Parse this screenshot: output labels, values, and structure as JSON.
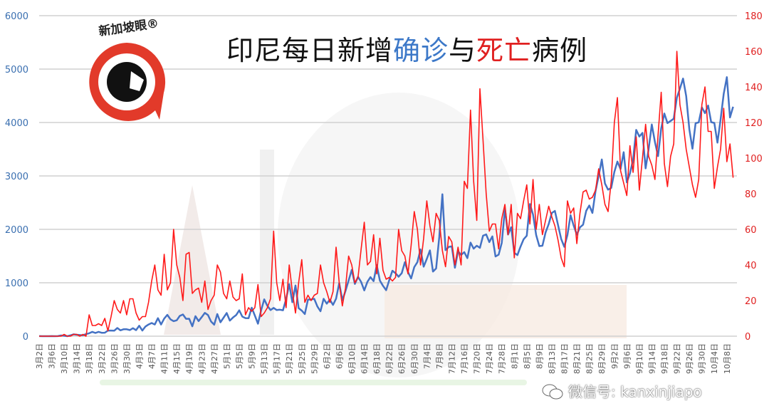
{
  "title": {
    "part1": "印尼每日新增",
    "part2": "确诊",
    "part3": "与",
    "part4": "死亡",
    "part5": "病例"
  },
  "logo": {
    "text": "新加坡眼®"
  },
  "watermark": {
    "text": "微信号: kanxinjiapo",
    "icon": "wechat-icon"
  },
  "colors": {
    "cases": "#4472c4",
    "deaths": "#ff1a1a",
    "left_axis": "#3a6fb0",
    "right_axis": "#e02020",
    "grid": "#d0d0d0"
  },
  "chart_data": {
    "type": "line",
    "title": "印尼每日新增确诊与死亡病例",
    "x_range": [
      "3月2日",
      "10月10日"
    ],
    "x_ticks": [
      "3月2日",
      "3月6日",
      "3月10日",
      "3月14日",
      "3月18日",
      "3月22日",
      "3月26日",
      "3月30日",
      "4月3日",
      "4月7日",
      "4月11日",
      "4月15日",
      "4月19日",
      "4月23日",
      "4月27日",
      "5月1日",
      "5月5日",
      "5月9日",
      "5月13日",
      "5月17日",
      "5月21日",
      "5月25日",
      "5月29日",
      "6月2日",
      "6月6日",
      "6月10日",
      "6月14日",
      "6月18日",
      "6月22日",
      "6月26日",
      "6月30日",
      "7月4日",
      "7月8日",
      "7月12日",
      "7月16日",
      "7月20日",
      "7月24日",
      "7月28日",
      "8月1日",
      "8月5日",
      "8月9日",
      "8月13日",
      "8月17日",
      "8月21日",
      "8月25日",
      "8月29日",
      "9月2日",
      "9月6日",
      "9月10日",
      "9月14日",
      "9月18日",
      "9月22日",
      "9月26日",
      "9月30日",
      "10月4日",
      "10月8日"
    ],
    "y_left": {
      "range": [
        0,
        6000
      ],
      "ticks": [
        "0",
        "1000",
        "2000",
        "3000",
        "4000",
        "5000",
        "6000"
      ]
    },
    "y_right": {
      "range": [
        0,
        180
      ],
      "ticks": [
        "0",
        "20",
        "40",
        "60",
        "80",
        "100",
        "120",
        "140",
        "160",
        "180"
      ]
    },
    "grid": true,
    "series": [
      {
        "axis": "left",
        "color": "#4472c4",
        "values": [
          2,
          0,
          0,
          0,
          2,
          0,
          2,
          13,
          8,
          0,
          15,
          35,
          27,
          21,
          17,
          38,
          55,
          82,
          60,
          81,
          64,
          65,
          106,
          105,
          103,
          153,
          109,
          130,
          129,
          114,
          149,
          113,
          196,
          106,
          181,
          218,
          247,
          218,
          337,
          219,
          330,
          399,
          316,
          282,
          297,
          380,
          407,
          325,
          327,
          185,
          375,
          283,
          357,
          436,
          396,
          275,
          214,
          415,
          260,
          347,
          433,
          292,
          349,
          395,
          484,
          367,
          338,
          336,
          533,
          387,
          233,
          484,
          689,
          568,
          490,
          529,
          489,
          496,
          486,
          693,
          973,
          634,
          949,
          526,
          479,
          415,
          686,
          687,
          700,
          557,
          467,
          700,
          609,
          684,
          585,
          703,
          993,
          672,
          847,
          1043,
          1241,
          979,
          1111,
          1014,
          857,
          1017,
          1106,
          1031,
          1331,
          1041,
          943,
          862,
          1051,
          1226,
          1178,
          1113,
          1178,
          1385,
          1198,
          1082,
          1293,
          1385,
          1624,
          1301,
          1447,
          1607,
          1209,
          1268,
          1853,
          2657,
          1611,
          1671,
          1681,
          1282,
          1591,
          1522,
          1574,
          1462,
          1752,
          1639,
          1693,
          1655,
          1882,
          1906,
          1761,
          1868,
          1492,
          1525,
          1748,
          2381,
          1904,
          2040,
          1560,
          1519,
          1679,
          1815,
          1882,
          2473,
          2277,
          1893,
          1687,
          1693,
          1942,
          2098,
          2307,
          2345,
          2081,
          1821,
          1673,
          1893,
          2266,
          2069,
          1902,
          2037,
          2088,
          2346,
          2447,
          2306,
          2719,
          3003,
          3308,
          2858,
          2743,
          2775,
          3075,
          3269,
          3128,
          3444,
          2880,
          3046,
          3307,
          3861,
          3737,
          3806,
          3141,
          3507,
          3963,
          3635,
          3371,
          3891,
          4168,
          3989,
          4029,
          4071,
          4465,
          4634,
          4823,
          4494,
          3874,
          3509,
          3987,
          4002,
          4284,
          4174,
          4317,
          4007,
          3992,
          3622,
          4056,
          4538,
          4850,
          4094,
          4294
        ]
      },
      {
        "axis": "right",
        "color": "#ff1a1a",
        "values": [
          0,
          0,
          0,
          0,
          0,
          0,
          0,
          0,
          1,
          0,
          0,
          1,
          1,
          0,
          1,
          0,
          12,
          6,
          6,
          7,
          6,
          10,
          3,
          11,
          20,
          15,
          13,
          20,
          12,
          21,
          21,
          13,
          9,
          11,
          11,
          19,
          31,
          40,
          26,
          23,
          46,
          26,
          30,
          60,
          40,
          33,
          20,
          46,
          47,
          24,
          26,
          27,
          19,
          31,
          15,
          20,
          23,
          40,
          36,
          24,
          21,
          31,
          22,
          20,
          21,
          35,
          12,
          16,
          14,
          16,
          29,
          11,
          13,
          16,
          21,
          59,
          30,
          20,
          32,
          16,
          40,
          25,
          13,
          30,
          43,
          19,
          23,
          20,
          23,
          24,
          40,
          30,
          25,
          19,
          25,
          50,
          30,
          17,
          27,
          45,
          40,
          30,
          33,
          49,
          64,
          40,
          42,
          57,
          35,
          55,
          37,
          32,
          33,
          31,
          33,
          60,
          48,
          45,
          35,
          51,
          70,
          60,
          40,
          55,
          76,
          62,
          53,
          69,
          65,
          48,
          39,
          56,
          53,
          40,
          50,
          40,
          87,
          83,
          127,
          87,
          65,
          139,
          110,
          80,
          59,
          63,
          63,
          49,
          66,
          74,
          57,
          74,
          44,
          69,
          66,
          76,
          85,
          63,
          88,
          60,
          74,
          57,
          65,
          73,
          67,
          62,
          54,
          44,
          39,
          76,
          69,
          72,
          52,
          69,
          81,
          82,
          77,
          78,
          82,
          94,
          85,
          74,
          70,
          87,
          120,
          134,
          93,
          86,
          79,
          107,
          92,
          112,
          82,
          100,
          119,
          101,
          96,
          88,
          113,
          137,
          97,
          84,
          101,
          108,
          160,
          130,
          120,
          105,
          95,
          85,
          78,
          88,
          130,
          140,
          115,
          115,
          83,
          95,
          105,
          128,
          98,
          108,
          89
        ]
      }
    ]
  }
}
